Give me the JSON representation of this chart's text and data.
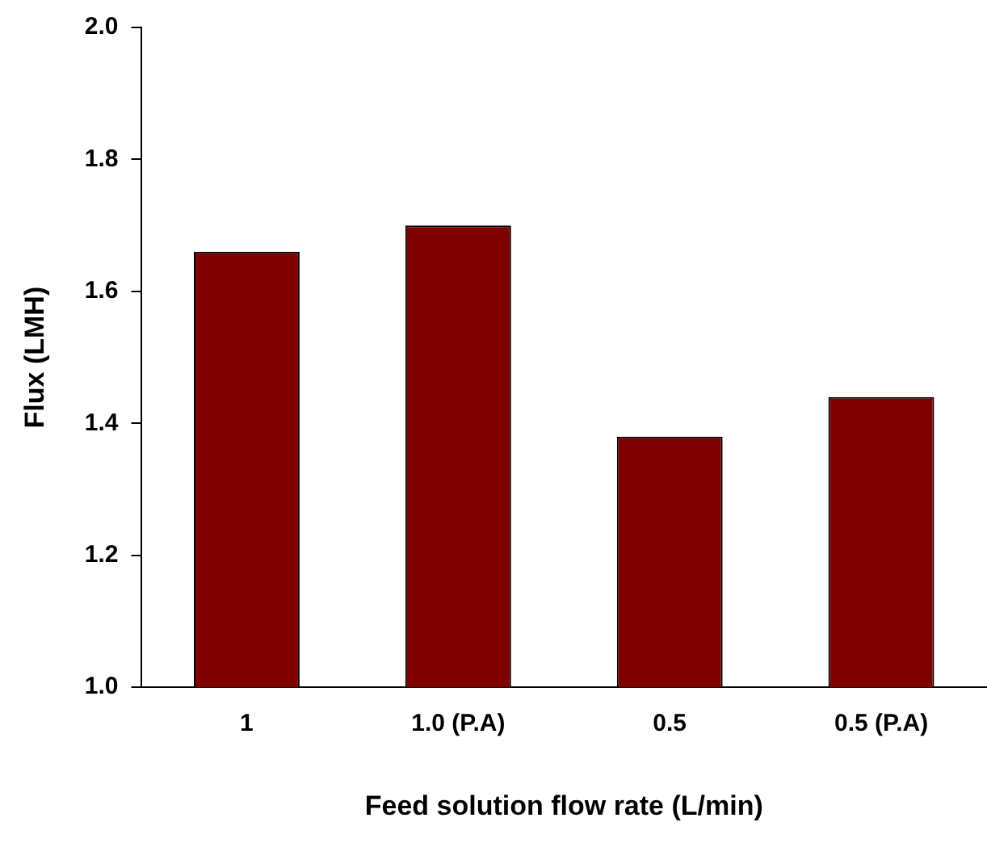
{
  "chart_data": {
    "type": "bar",
    "xlabel": "Feed solution flow rate (L/min)",
    "ylabel": "Flux (LMH)",
    "categories": [
      "1",
      "1.0 (P.A)",
      "0.5",
      "0.5 (P.A)"
    ],
    "values": [
      1.66,
      1.7,
      1.38,
      1.44
    ],
    "color": "#800000",
    "ylim": [
      1.0,
      2.0
    ],
    "yticks": [
      {
        "value": 1.0,
        "label": "1.0"
      },
      {
        "value": 1.2,
        "label": "1.2"
      },
      {
        "value": 1.4,
        "label": "1.4"
      },
      {
        "value": 1.6,
        "label": "1.6"
      },
      {
        "value": 1.8,
        "label": "1.8"
      },
      {
        "value": 2.0,
        "label": "2.0"
      }
    ],
    "grid": false,
    "legend": false
  }
}
